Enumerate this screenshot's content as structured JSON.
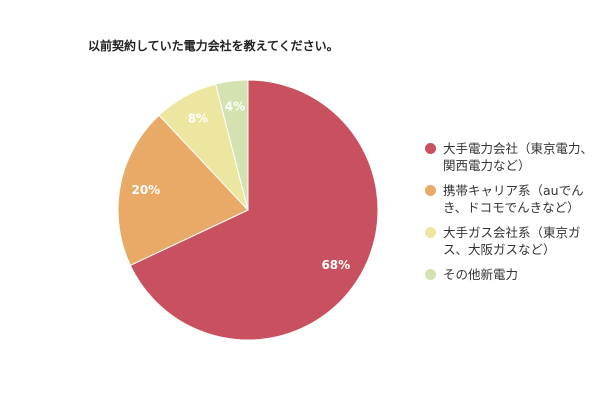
{
  "chart_data": {
    "type": "pie",
    "title": "以前契約していた電力会社を教えてください。",
    "categories": [
      "大手電力会社（東京電力、関西電力など）",
      "携帯キャリア系（auでんき、ドコモでんきなど）",
      "大手ガス会社系（東京ガス、大阪ガスなど）",
      "その他新電力"
    ],
    "values": [
      68,
      20,
      8,
      4
    ],
    "value_labels": [
      "68%",
      "20%",
      "8%",
      "4%"
    ],
    "colors": [
      "#c9505f",
      "#e8aa66",
      "#ede6a0",
      "#d3e2b0"
    ],
    "legend": "right"
  }
}
